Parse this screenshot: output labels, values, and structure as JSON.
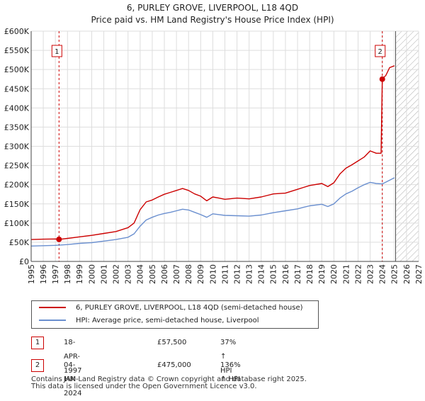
{
  "header": {
    "title": "6, PURLEY GROVE, LIVERPOOL, L18 4QD",
    "subtitle": "Price paid vs. HM Land Registry's House Price Index (HPI)"
  },
  "legend": {
    "property_label": "6, PURLEY GROVE, LIVERPOOL, L18 4QD (semi-detached house)",
    "hpi_label": "HPI: Average price, semi-detached house, Liverpool"
  },
  "transactions": [
    {
      "num": "1",
      "date": "18-APR-1997",
      "price": "£57,500",
      "hpi": "37% ↑ HPI"
    },
    {
      "num": "2",
      "date": "04-JAN-2024",
      "price": "£475,000",
      "hpi": "136% ↑ HPI"
    }
  ],
  "footer": {
    "line1": "Contains HM Land Registry data © Crown copyright and database right 2025.",
    "line2": "This data is licensed under the Open Government Licence v3.0."
  },
  "colors": {
    "property": "#cc0000",
    "hpi": "#6a8fcf",
    "grid": "#dddddd",
    "marker": "#cc0000"
  },
  "chart_data": {
    "type": "line",
    "title": "6, PURLEY GROVE, LIVERPOOL, L18 4QD",
    "subtitle": "Price paid vs. HM Land Registry's House Price Index (HPI)",
    "xlabel": "",
    "ylabel": "",
    "xlim": [
      1995,
      2027
    ],
    "ylim": [
      0,
      600000
    ],
    "y_ticks": [
      0,
      50000,
      100000,
      150000,
      200000,
      250000,
      300000,
      350000,
      400000,
      450000,
      500000,
      550000,
      600000
    ],
    "y_tick_labels": [
      "£0",
      "£50K",
      "£100K",
      "£150K",
      "£200K",
      "£250K",
      "£300K",
      "£350K",
      "£400K",
      "£450K",
      "£500K",
      "£550K",
      "£600K"
    ],
    "x_ticks": [
      1995,
      1996,
      1997,
      1998,
      1999,
      2000,
      2001,
      2002,
      2003,
      2004,
      2005,
      2006,
      2007,
      2008,
      2009,
      2010,
      2011,
      2012,
      2013,
      2014,
      2015,
      2016,
      2017,
      2018,
      2019,
      2020,
      2021,
      2022,
      2023,
      2024,
      2025,
      2026,
      2027
    ],
    "x_tick_labels": [
      "1995",
      "1996",
      "1997",
      "1998",
      "1999",
      "2000",
      "2001",
      "2002",
      "2003",
      "2004",
      "2005",
      "2006",
      "2007",
      "2008",
      "2009",
      "2010",
      "2011",
      "2012",
      "2013",
      "2014",
      "2015",
      "2016",
      "2017",
      "2018",
      "2019",
      "2020",
      "2021",
      "2022",
      "2023",
      "2024",
      "2025",
      "2026",
      "2027"
    ],
    "grid": true,
    "shaded_future_from": 2025.1,
    "series": [
      {
        "name": "6, PURLEY GROVE, LIVERPOOL, L18 4QD (semi-detached house)",
        "x": [
          1995.0,
          1996.0,
          1997.0,
          1997.3,
          1998.0,
          1999.0,
          2000.0,
          2001.0,
          2002.0,
          2003.0,
          2003.5,
          2004.0,
          2004.5,
          2005.0,
          2005.5,
          2006.0,
          2006.5,
          2007.0,
          2007.5,
          2008.0,
          2008.5,
          2009.0,
          2009.5,
          2010.0,
          2010.5,
          2011.0,
          2012.0,
          2013.0,
          2014.0,
          2015.0,
          2016.0,
          2017.0,
          2017.5,
          2018.0,
          2019.0,
          2019.5,
          2020.0,
          2020.5,
          2021.0,
          2021.5,
          2022.0,
          2022.5,
          2023.0,
          2023.5,
          2023.9,
          2024.0,
          2024.3,
          2024.6,
          2025.0
        ],
        "y": [
          57000,
          58000,
          58500,
          57500,
          60000,
          64000,
          68000,
          73000,
          78000,
          88000,
          100000,
          135000,
          155000,
          160000,
          168000,
          175000,
          180000,
          185000,
          190000,
          185000,
          176000,
          170000,
          158000,
          168000,
          165000,
          162000,
          165000,
          163000,
          168000,
          176000,
          178000,
          188000,
          193000,
          198000,
          203000,
          195000,
          205000,
          228000,
          243000,
          252000,
          262000,
          272000,
          288000,
          282000,
          282000,
          475000,
          485000,
          505000,
          510000
        ]
      },
      {
        "name": "HPI: Average price, semi-detached house, Liverpool",
        "x": [
          1995.0,
          1996.0,
          1997.0,
          1998.0,
          1999.0,
          2000.0,
          2001.0,
          2002.0,
          2003.0,
          2003.5,
          2004.0,
          2004.5,
          2005.0,
          2005.5,
          2006.0,
          2006.5,
          2007.0,
          2007.5,
          2008.0,
          2008.5,
          2009.0,
          2009.5,
          2010.0,
          2010.5,
          2011.0,
          2012.0,
          2013.0,
          2014.0,
          2015.0,
          2016.0,
          2017.0,
          2017.5,
          2018.0,
          2019.0,
          2019.5,
          2020.0,
          2020.5,
          2021.0,
          2021.5,
          2022.0,
          2022.5,
          2023.0,
          2023.5,
          2024.0,
          2024.5,
          2025.0
        ],
        "y": [
          40000,
          41000,
          42000,
          44000,
          47000,
          49000,
          53000,
          57000,
          63000,
          72000,
          92000,
          108000,
          115000,
          121000,
          125000,
          128000,
          132000,
          136000,
          134000,
          128000,
          122000,
          115000,
          124000,
          122000,
          120000,
          119000,
          118000,
          121000,
          127000,
          132000,
          137000,
          141000,
          145000,
          149000,
          143000,
          150000,
          165000,
          176000,
          183000,
          192000,
          200000,
          206000,
          203000,
          202000,
          210000,
          218000
        ]
      }
    ],
    "annotations": [
      {
        "label": "1",
        "x": 1997.3,
        "y": 57500
      },
      {
        "label": "2",
        "x": 2024.0,
        "y": 475000
      }
    ]
  }
}
